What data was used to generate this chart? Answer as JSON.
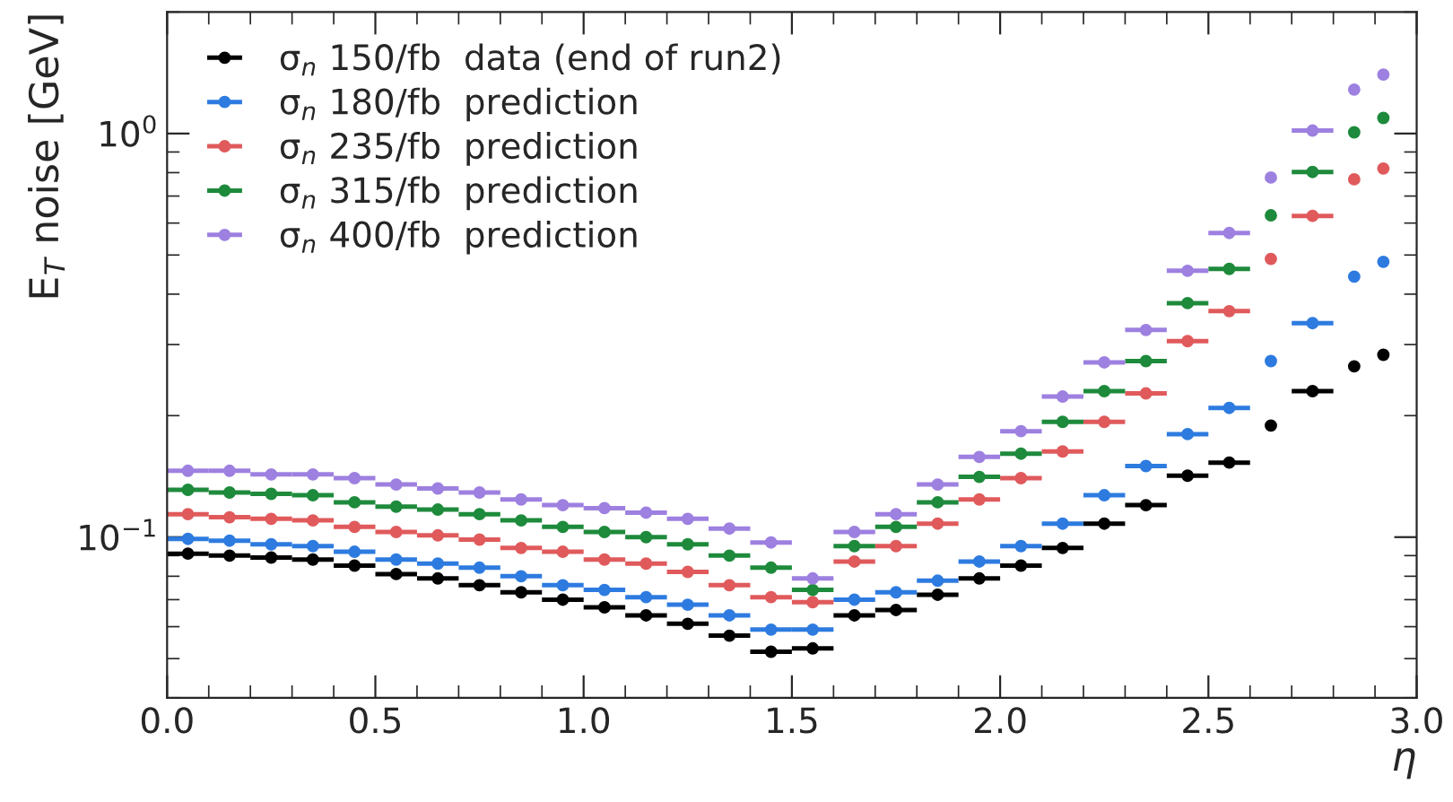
{
  "chart_data": {
    "type": "scatter",
    "xlabel": "η",
    "ylabel": "E$_{T}$ noise [GeV]",
    "x": [
      0.05,
      0.15,
      0.25,
      0.35,
      0.45,
      0.55,
      0.65,
      0.75,
      0.85,
      0.95,
      1.05,
      1.15,
      1.25,
      1.35,
      1.45,
      1.55,
      1.65,
      1.75,
      1.85,
      1.95,
      2.05,
      2.15,
      2.25,
      2.35,
      2.45,
      2.55,
      2.65,
      2.75,
      2.85,
      2.92
    ],
    "series": [
      {
        "name": "σ$_{n}$ 150/fb  data (end of run2)",
        "color": "#000000",
        "values": [
          0.091,
          0.09,
          0.089,
          0.088,
          0.085,
          0.081,
          0.079,
          0.076,
          0.073,
          0.07,
          0.067,
          0.064,
          0.061,
          0.057,
          0.052,
          0.053,
          0.064,
          0.066,
          0.072,
          0.079,
          0.085,
          0.094,
          0.108,
          0.12,
          0.142,
          0.153,
          0.189,
          0.23,
          0.265,
          0.283
        ],
        "xerrors": [
          0.05,
          0.05,
          0.05,
          0.05,
          0.05,
          0.05,
          0.05,
          0.05,
          0.05,
          0.05,
          0.05,
          0.05,
          0.05,
          0.05,
          0.05,
          0.05,
          0.05,
          0.05,
          0.05,
          0.05,
          0.05,
          0.05,
          0.05,
          0.05,
          0.05,
          0.05,
          null,
          0.05,
          null,
          null
        ]
      },
      {
        "name": "σ$_{n}$ 180/fb  prediction",
        "color": "#2e7be0",
        "values": [
          0.099,
          0.098,
          0.096,
          0.095,
          0.092,
          0.088,
          0.086,
          0.084,
          0.08,
          0.076,
          0.074,
          0.071,
          0.068,
          0.064,
          0.059,
          0.059,
          0.07,
          0.073,
          0.078,
          0.087,
          0.095,
          0.108,
          0.127,
          0.15,
          0.18,
          0.209,
          0.273,
          0.339,
          0.442,
          0.481
        ],
        "xerrors": [
          0.05,
          0.05,
          0.05,
          0.05,
          0.05,
          0.05,
          0.05,
          0.05,
          0.05,
          0.05,
          0.05,
          0.05,
          0.05,
          0.05,
          0.05,
          0.05,
          0.05,
          0.05,
          0.05,
          0.05,
          0.05,
          0.05,
          0.05,
          0.05,
          0.05,
          0.05,
          null,
          0.05,
          null,
          null
        ]
      },
      {
        "name": "σ$_{n}$ 235/fb  prediction",
        "color": "#e05a5c",
        "values": [
          0.114,
          0.112,
          0.111,
          0.11,
          0.106,
          0.103,
          0.101,
          0.0986,
          0.094,
          0.092,
          0.088,
          0.086,
          0.082,
          0.076,
          0.071,
          0.069,
          0.087,
          0.095,
          0.108,
          0.124,
          0.14,
          0.163,
          0.193,
          0.227,
          0.306,
          0.363,
          0.489,
          0.625,
          0.77,
          0.819
        ],
        "xerrors": [
          0.05,
          0.05,
          0.05,
          0.05,
          0.05,
          0.05,
          0.05,
          0.05,
          0.05,
          0.05,
          0.05,
          0.05,
          0.05,
          0.05,
          0.05,
          0.05,
          0.05,
          0.05,
          0.05,
          0.05,
          0.05,
          0.05,
          0.05,
          0.05,
          0.05,
          0.05,
          null,
          0.05,
          null,
          null
        ]
      },
      {
        "name": "σ$_{n}$ 315/fb  prediction",
        "color": "#1e8a3c",
        "values": [
          0.131,
          0.129,
          0.128,
          0.127,
          0.122,
          0.119,
          0.117,
          0.114,
          0.11,
          0.106,
          0.103,
          0.1,
          0.096,
          0.09,
          0.084,
          0.074,
          0.095,
          0.106,
          0.122,
          0.141,
          0.161,
          0.193,
          0.23,
          0.273,
          0.38,
          0.462,
          0.627,
          0.803,
          1.007,
          1.093
        ],
        "xerrors": [
          0.05,
          0.05,
          0.05,
          0.05,
          0.05,
          0.05,
          0.05,
          0.05,
          0.05,
          0.05,
          0.05,
          0.05,
          0.05,
          0.05,
          0.05,
          0.05,
          0.05,
          0.05,
          0.05,
          0.05,
          0.05,
          0.05,
          0.05,
          0.05,
          0.05,
          0.05,
          null,
          0.05,
          null,
          null
        ]
      },
      {
        "name": "σ$_{n}$ 400/fb  prediction",
        "color": "#9d80e0",
        "values": [
          0.146,
          0.146,
          0.143,
          0.143,
          0.14,
          0.135,
          0.132,
          0.129,
          0.124,
          0.12,
          0.118,
          0.115,
          0.111,
          0.105,
          0.097,
          0.079,
          0.103,
          0.114,
          0.135,
          0.158,
          0.183,
          0.223,
          0.271,
          0.326,
          0.457,
          0.567,
          0.778,
          1.017,
          1.285,
          1.4
        ],
        "xerrors": [
          0.05,
          0.05,
          0.05,
          0.05,
          0.05,
          0.05,
          0.05,
          0.05,
          0.05,
          0.05,
          0.05,
          0.05,
          0.05,
          0.05,
          0.05,
          0.05,
          0.05,
          0.05,
          0.05,
          0.05,
          0.05,
          0.05,
          0.05,
          0.05,
          0.05,
          0.05,
          null,
          0.05,
          null,
          null
        ]
      }
    ],
    "log": true,
    "xlim": [
      0,
      3
    ],
    "xticks": [
      {
        "value": 0,
        "label": "0.0"
      },
      {
        "value": 0.5,
        "label": "0.5"
      },
      {
        "value": 1,
        "label": "1.0"
      },
      {
        "value": 1.5,
        "label": "1.5"
      },
      {
        "value": 2,
        "label": "2.0"
      },
      {
        "value": 2.5,
        "label": "2.5"
      },
      {
        "value": 3,
        "label": "3.0"
      }
    ],
    "ylim": [
      0.04,
      2.0
    ],
    "yticks": [
      {
        "value": 0.1,
        "label": "10$^{−1}$"
      },
      {
        "value": 1,
        "label": "10$^{0}$"
      }
    ],
    "marker": "circle",
    "legend": "top left"
  }
}
